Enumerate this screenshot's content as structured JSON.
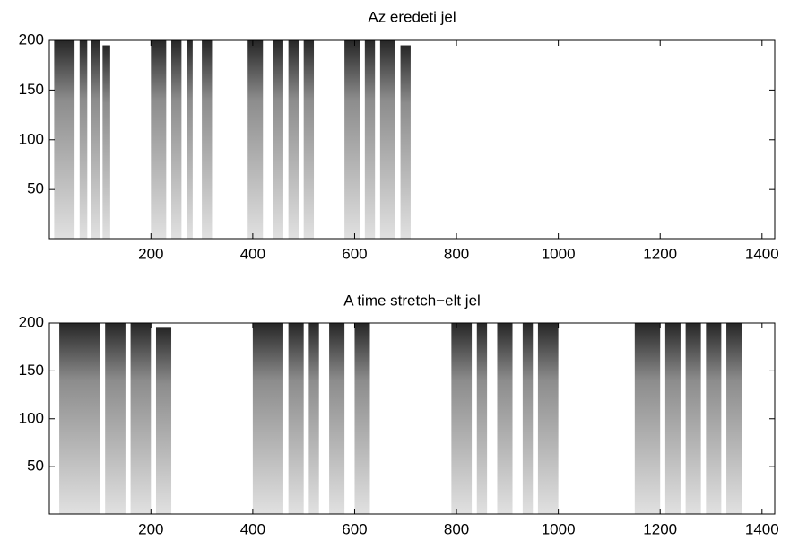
{
  "chart_data": [
    {
      "type": "spectrogram",
      "title": "Az eredeti jel",
      "xlim": [
        0.5,
        1425
      ],
      "ylim": [
        0.5,
        200
      ],
      "xticks": [
        200,
        400,
        600,
        800,
        1000,
        1200,
        1400
      ],
      "yticks": [
        50,
        100,
        150,
        200
      ],
      "color": "#000000",
      "segments": [
        [
          10,
          50,
          200
        ],
        [
          60,
          75,
          200
        ],
        [
          82,
          100,
          200
        ],
        [
          105,
          120,
          195
        ],
        [
          200,
          230,
          200
        ],
        [
          240,
          260,
          200
        ],
        [
          270,
          282,
          200
        ],
        [
          300,
          320,
          200
        ],
        [
          390,
          420,
          200
        ],
        [
          440,
          460,
          200
        ],
        [
          470,
          490,
          200
        ],
        [
          500,
          520,
          200
        ],
        [
          580,
          610,
          200
        ],
        [
          620,
          640,
          200
        ],
        [
          650,
          680,
          200
        ],
        [
          690,
          710,
          195
        ]
      ]
    },
    {
      "type": "spectrogram",
      "title": "A time stretch−elt jel",
      "xlim": [
        0.5,
        1425
      ],
      "ylim": [
        0.5,
        200
      ],
      "xticks": [
        200,
        400,
        600,
        800,
        1000,
        1200,
        1400
      ],
      "yticks": [
        50,
        100,
        150,
        200
      ],
      "color": "#000000",
      "segments": [
        [
          20,
          100,
          200
        ],
        [
          110,
          150,
          200
        ],
        [
          160,
          200,
          200
        ],
        [
          210,
          240,
          195
        ],
        [
          400,
          460,
          200
        ],
        [
          470,
          500,
          200
        ],
        [
          510,
          530,
          200
        ],
        [
          550,
          580,
          200
        ],
        [
          600,
          630,
          200
        ],
        [
          790,
          830,
          200
        ],
        [
          840,
          860,
          200
        ],
        [
          880,
          910,
          200
        ],
        [
          930,
          950,
          200
        ],
        [
          960,
          1000,
          200
        ],
        [
          1150,
          1200,
          200
        ],
        [
          1210,
          1240,
          200
        ],
        [
          1250,
          1280,
          200
        ],
        [
          1290,
          1320,
          200
        ],
        [
          1330,
          1360,
          200
        ]
      ]
    }
  ]
}
